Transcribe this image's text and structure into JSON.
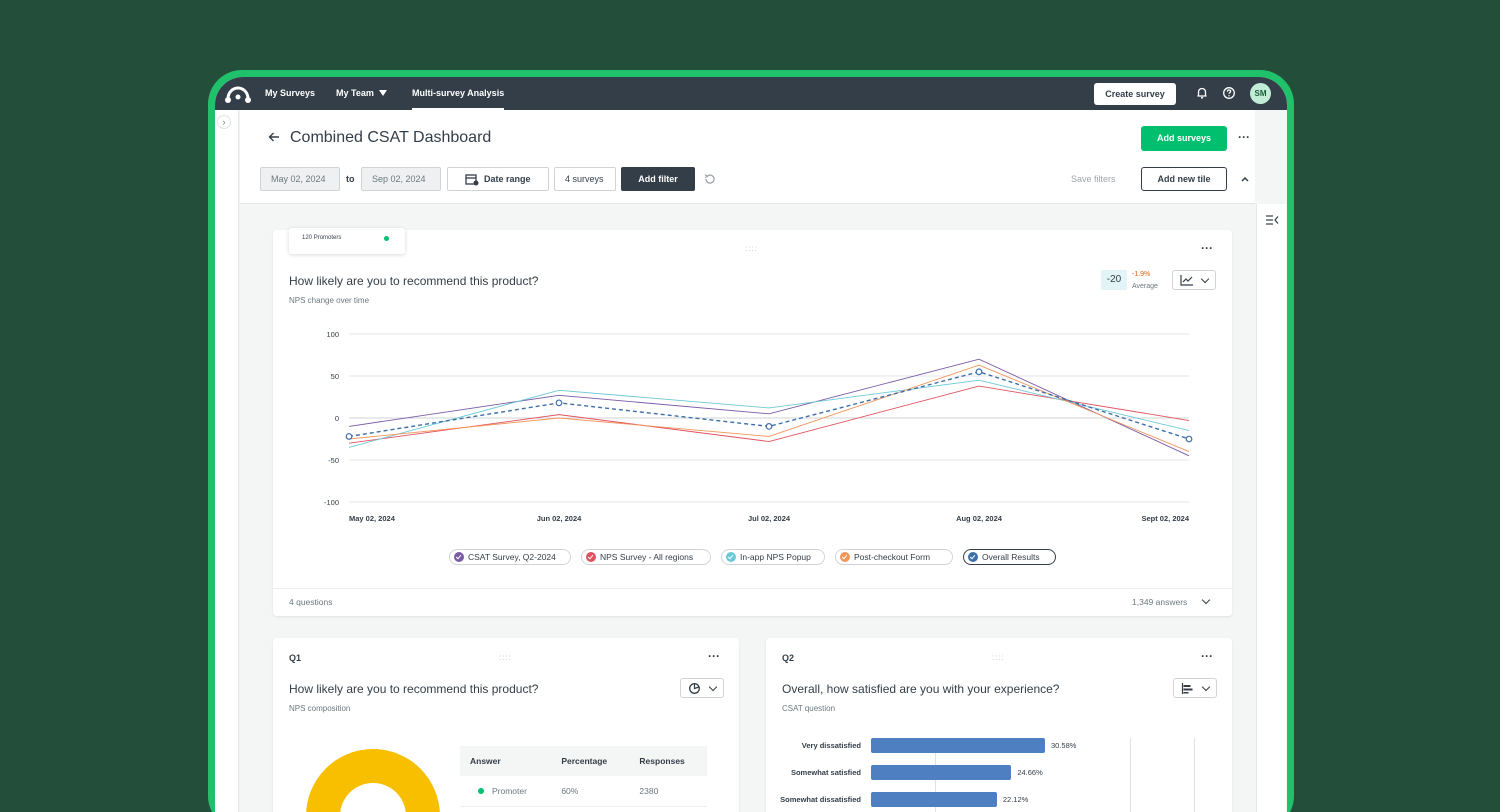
{
  "nav": {
    "items": [
      "My Surveys",
      "My Team",
      "Multi-survey Analysis"
    ],
    "create_label": "Create survey",
    "avatar": "SM"
  },
  "header": {
    "title": "Combined CSAT Dashboard",
    "add_surveys": "Add surveys",
    "date_from": "May 02, 2024",
    "to": "to",
    "date_to": "Sep 02, 2024",
    "date_range": "Date range",
    "surveys_count": "4 surveys",
    "add_filter": "Add filter",
    "save_filters": "Save filters",
    "add_tile": "Add new tile"
  },
  "main_card": {
    "tooltip_count": "120",
    "tooltip_label": "Promoters",
    "question": "How likely are you to recommend this product?",
    "subtitle": "NPS change over time",
    "average_value": "-20",
    "average_change": "-1.9%",
    "average_label": "Average",
    "footer_left": "4 questions",
    "footer_right": "1,349 answers"
  },
  "chart_data": {
    "type": "line",
    "x": [
      "May 02, 2024",
      "Jun 02, 2024",
      "Jul 02, 2024",
      "Aug 02, 2024",
      "Sept 02, 2024"
    ],
    "yticks": [
      100,
      50,
      0,
      -50,
      -100
    ],
    "ylim": [
      -100,
      100
    ],
    "grid": true,
    "legend_position": "bottom",
    "series": [
      {
        "name": "CSAT Survey, Q2-2024",
        "color": "#7b5aa6",
        "values": [
          -10,
          27,
          5,
          70,
          -45
        ],
        "dashed": false
      },
      {
        "name": "NPS Survey - All regions",
        "color": "#e05260",
        "values": [
          -30,
          4,
          -28,
          38,
          -3
        ],
        "dashed": false
      },
      {
        "name": "In-app NPS Popup",
        "color": "#6cc8d6",
        "values": [
          -35,
          33,
          12,
          45,
          -15
        ],
        "dashed": false
      },
      {
        "name": "Post-checkout Form",
        "color": "#f2955a",
        "values": [
          -25,
          0,
          -22,
          63,
          -40
        ],
        "dashed": false
      },
      {
        "name": "Overall Results",
        "color": "#3d6fa8",
        "values": [
          -22,
          18,
          -10,
          55,
          -25
        ],
        "dashed": true
      }
    ]
  },
  "q1": {
    "label": "Q1",
    "question": "How likely are you to recommend this product?",
    "subtitle": "NPS composition",
    "table_headers": [
      "Answer",
      "Percentage",
      "Responses"
    ],
    "rows": [
      {
        "answer": "Promoter",
        "percentage": "60%",
        "responses": "2380",
        "color": "#00bf6f"
      }
    ]
  },
  "q2": {
    "label": "Q2",
    "question": "Overall, how satisfied are you with your experience?",
    "subtitle": "CSAT question",
    "bars": [
      {
        "label": "Very dissatisfied",
        "value": 30.58,
        "text": "30.58%"
      },
      {
        "label": "Somewhat satisfied",
        "value": 24.66,
        "text": "24.66%"
      },
      {
        "label": "Somewhat dissatisfied",
        "value": 22.12,
        "text": "22.12%"
      }
    ]
  },
  "colors": {
    "brand_green": "#00bf6f",
    "nav_dark": "#333e48",
    "background": "#234f3a"
  },
  "icons": [
    "logo-icon",
    "bell-icon",
    "help-icon",
    "back-arrow-icon",
    "calendar-icon",
    "reset-icon",
    "chevron-up-icon",
    "panel-collapse-icon",
    "line-chart-icon",
    "donut-chart-icon",
    "bar-chart-icon",
    "more-icon",
    "drag-handle-icon",
    "chevron-down-icon"
  ]
}
